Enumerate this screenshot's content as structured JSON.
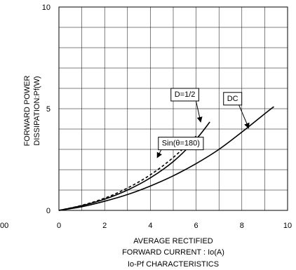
{
  "chart_data": {
    "type": "line",
    "title": "",
    "xlabel_lines": [
      "AVERAGE RECTIFIED",
      "FORWARD CURRENT : Io(A)",
      "Io-Pf CHARACTERISTICS"
    ],
    "ylabel_lines": [
      "FORWARD POWER",
      "DISSIPATION:Pf(W)"
    ],
    "xlim": [
      0,
      10
    ],
    "ylim": [
      0,
      10
    ],
    "x_ticks": [
      0,
      2,
      4,
      6,
      8,
      10
    ],
    "y_ticks": [
      0,
      5,
      10
    ],
    "x_grid_step": 1,
    "y_grid_step": 1,
    "grid": true,
    "stray_tick_label": "00",
    "series": [
      {
        "name": "Sin(θ=180)",
        "style": "dashed",
        "color": "#000000",
        "points": [
          [
            0,
            0
          ],
          [
            1,
            0.25
          ],
          [
            2,
            0.6
          ],
          [
            3,
            1.1
          ],
          [
            4,
            1.75
          ],
          [
            5,
            2.6
          ],
          [
            6,
            3.65
          ]
        ]
      },
      {
        "name": "D=1/2",
        "style": "solid",
        "color": "#000000",
        "points": [
          [
            0,
            0
          ],
          [
            1,
            0.23
          ],
          [
            2,
            0.55
          ],
          [
            3,
            1.0
          ],
          [
            4,
            1.6
          ],
          [
            5,
            2.4
          ],
          [
            6,
            3.5
          ],
          [
            6.6,
            4.35
          ]
        ]
      },
      {
        "name": "DC",
        "style": "solid",
        "color": "#000000",
        "points": [
          [
            0,
            0
          ],
          [
            1,
            0.18
          ],
          [
            2,
            0.45
          ],
          [
            3,
            0.78
          ],
          [
            4,
            1.2
          ],
          [
            5,
            1.7
          ],
          [
            6,
            2.3
          ],
          [
            7,
            3.0
          ],
          [
            8,
            3.85
          ],
          [
            9,
            4.75
          ],
          [
            9.4,
            5.1
          ]
        ]
      }
    ],
    "annotations": [
      {
        "name": "annotation-sin",
        "text": "Sin(θ=180)",
        "box_at": [
          4.35,
          3.6
        ],
        "arrow_to": [
          4.3,
          2.6
        ]
      },
      {
        "name": "annotation-d",
        "text": "D=1/2",
        "box_at": [
          4.9,
          6.0
        ],
        "arrow_to": [
          6.2,
          4.35
        ]
      },
      {
        "name": "annotation-dc",
        "text": "DC",
        "box_at": [
          7.2,
          5.8
        ],
        "arrow_to": [
          8.3,
          4.05
        ]
      }
    ]
  }
}
